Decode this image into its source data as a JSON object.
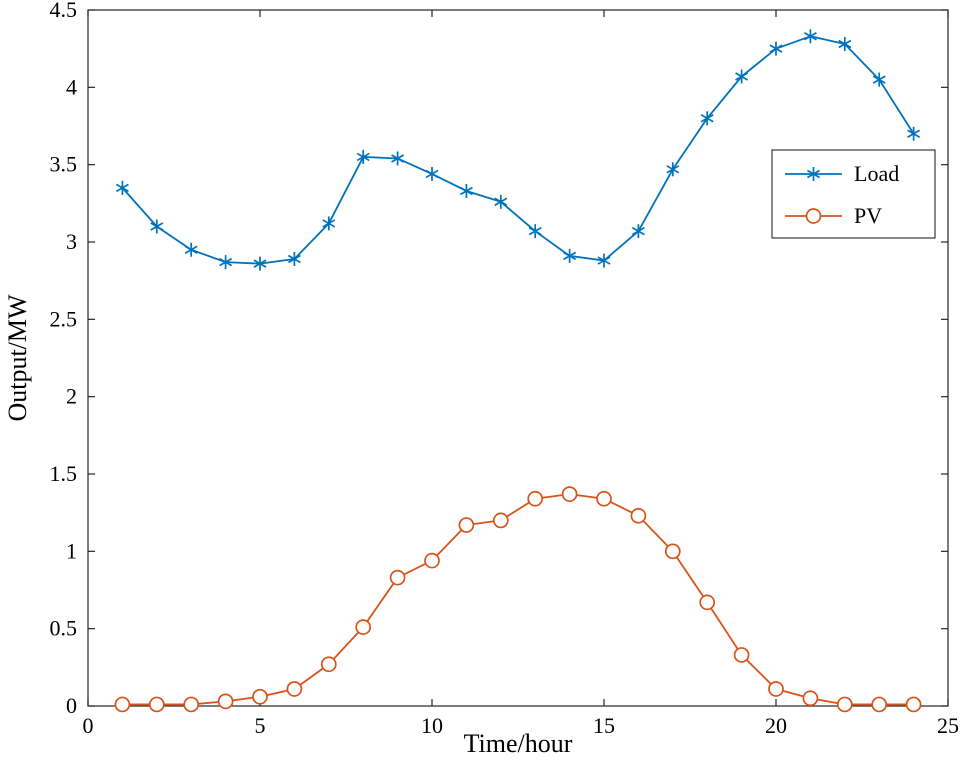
{
  "figure": {
    "background": "#ffffff",
    "axis_color": "#262626"
  },
  "chart_data": {
    "type": "line",
    "title": "",
    "xlabel": "Time/hour",
    "ylabel": "Output/MW",
    "xlim": [
      0,
      25
    ],
    "ylim": [
      0,
      4.5
    ],
    "grid": false,
    "xticks": [
      0,
      5,
      10,
      15,
      20,
      25
    ],
    "xtick_labels": [
      "0",
      "5",
      "10",
      "15",
      "20",
      "25"
    ],
    "yticks": [
      0,
      0.5,
      1,
      1.5,
      2,
      2.5,
      3,
      3.5,
      4,
      4.5
    ],
    "ytick_labels": [
      "0",
      "0.5",
      "1",
      "1.5",
      "2",
      "2.5",
      "3",
      "3.5",
      "4",
      "4.5"
    ],
    "legend": {
      "position": "upper-right-inside",
      "border": true
    },
    "x": [
      1,
      2,
      3,
      4,
      5,
      6,
      7,
      8,
      9,
      10,
      11,
      12,
      13,
      14,
      15,
      16,
      17,
      18,
      19,
      20,
      21,
      22,
      23,
      24
    ],
    "series": [
      {
        "name": "Load",
        "color": "#0072BD",
        "marker": "asterisk",
        "values": [
          3.35,
          3.1,
          2.95,
          2.87,
          2.86,
          2.89,
          3.12,
          3.55,
          3.54,
          3.44,
          3.33,
          3.26,
          3.07,
          2.91,
          2.88,
          3.07,
          3.47,
          3.8,
          4.07,
          4.25,
          4.33,
          4.28,
          4.05,
          3.7
        ]
      },
      {
        "name": "PV",
        "color": "#D95319",
        "marker": "circle",
        "values": [
          0.01,
          0.01,
          0.01,
          0.03,
          0.06,
          0.11,
          0.27,
          0.51,
          0.83,
          0.94,
          1.17,
          1.2,
          1.34,
          1.37,
          1.34,
          1.23,
          1.0,
          0.67,
          0.33,
          0.11,
          0.05,
          0.01,
          0.01,
          0.01
        ]
      }
    ]
  }
}
